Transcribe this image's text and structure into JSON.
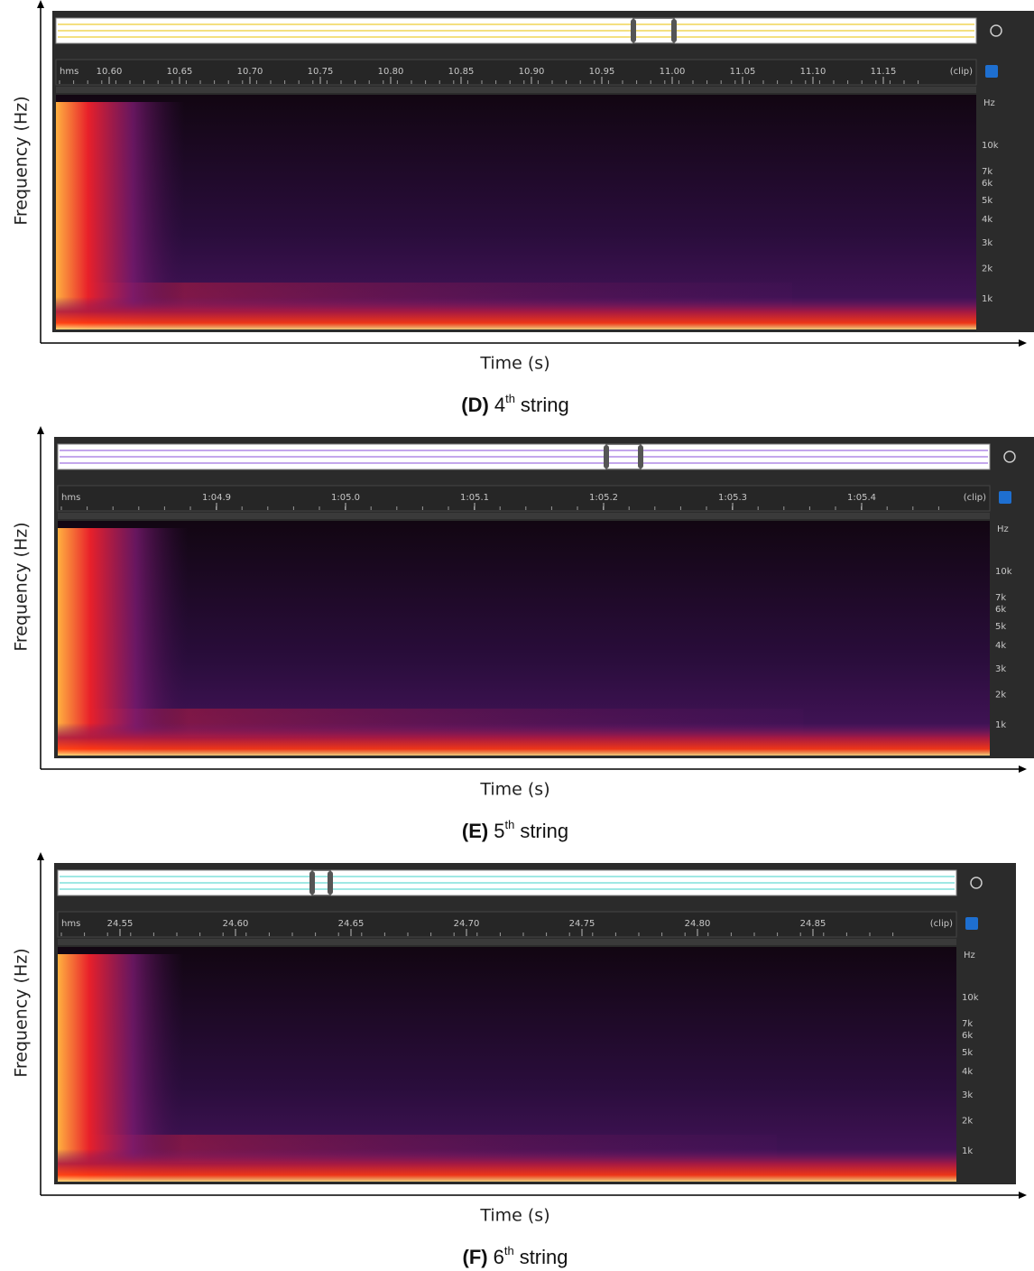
{
  "panels": [
    {
      "y_label": "Frequency (Hz)",
      "x_label": "Time (s)",
      "time_unit": "hms",
      "time_ticks": [
        "10.60",
        "10.65",
        "10.70",
        "10.75",
        "10.80",
        "10.85",
        "10.90",
        "10.95",
        "11.00",
        "11.05",
        "11.10",
        "11.15"
      ],
      "clip": "(clip)",
      "freq_unit": "Hz",
      "freq_labels": [
        "10k",
        "7k",
        "6k",
        "5k",
        "4k",
        "3k",
        "2k",
        "1k"
      ],
      "caption": {
        "label": "(D)",
        "ordinal": "4",
        "suffix": "th",
        "text": "string"
      }
    },
    {
      "y_label": "Frequency (Hz)",
      "x_label": "Time (s)",
      "time_unit": "hms",
      "time_ticks": [
        "1:04.9",
        "1:05.0",
        "1:05.1",
        "1:05.2",
        "1:05.3",
        "1:05.4"
      ],
      "clip": "(clip)",
      "freq_unit": "Hz",
      "freq_labels": [
        "10k",
        "7k",
        "6k",
        "5k",
        "4k",
        "3k",
        "2k",
        "1k"
      ],
      "caption": {
        "label": "(E)",
        "ordinal": "5",
        "suffix": "th",
        "text": "string"
      }
    },
    {
      "y_label": "Frequency (Hz)",
      "x_label": "Time (s)",
      "time_unit": "hms",
      "time_ticks": [
        "24.55",
        "24.60",
        "24.65",
        "24.70",
        "24.75",
        "24.80",
        "24.85"
      ],
      "clip": "(clip)",
      "freq_unit": "Hz",
      "freq_labels": [
        "10k",
        "7k",
        "6k",
        "5k",
        "4k",
        "3k",
        "2k",
        "1k"
      ],
      "caption": {
        "label": "(F)",
        "ordinal": "6",
        "suffix": "th",
        "text": "string"
      }
    }
  ]
}
